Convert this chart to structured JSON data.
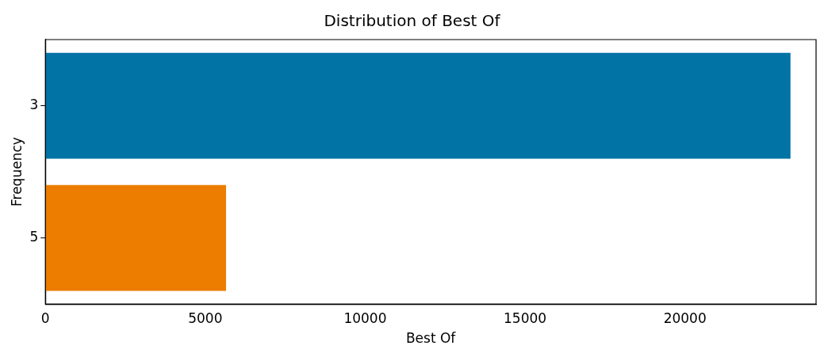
{
  "chart_data": {
    "type": "bar",
    "orientation": "horizontal",
    "title": "Distribution of Best Of",
    "xlabel": "Best Of",
    "ylabel": "Frequency",
    "categories": [
      "3",
      "5"
    ],
    "values": [
      23300,
      5650
    ],
    "colors": [
      "#0173a5",
      "#ec7d00"
    ],
    "xlim": [
      0,
      24100
    ],
    "xticks": [
      0,
      5000,
      10000,
      15000,
      20000
    ],
    "grid": false,
    "legend": false
  }
}
